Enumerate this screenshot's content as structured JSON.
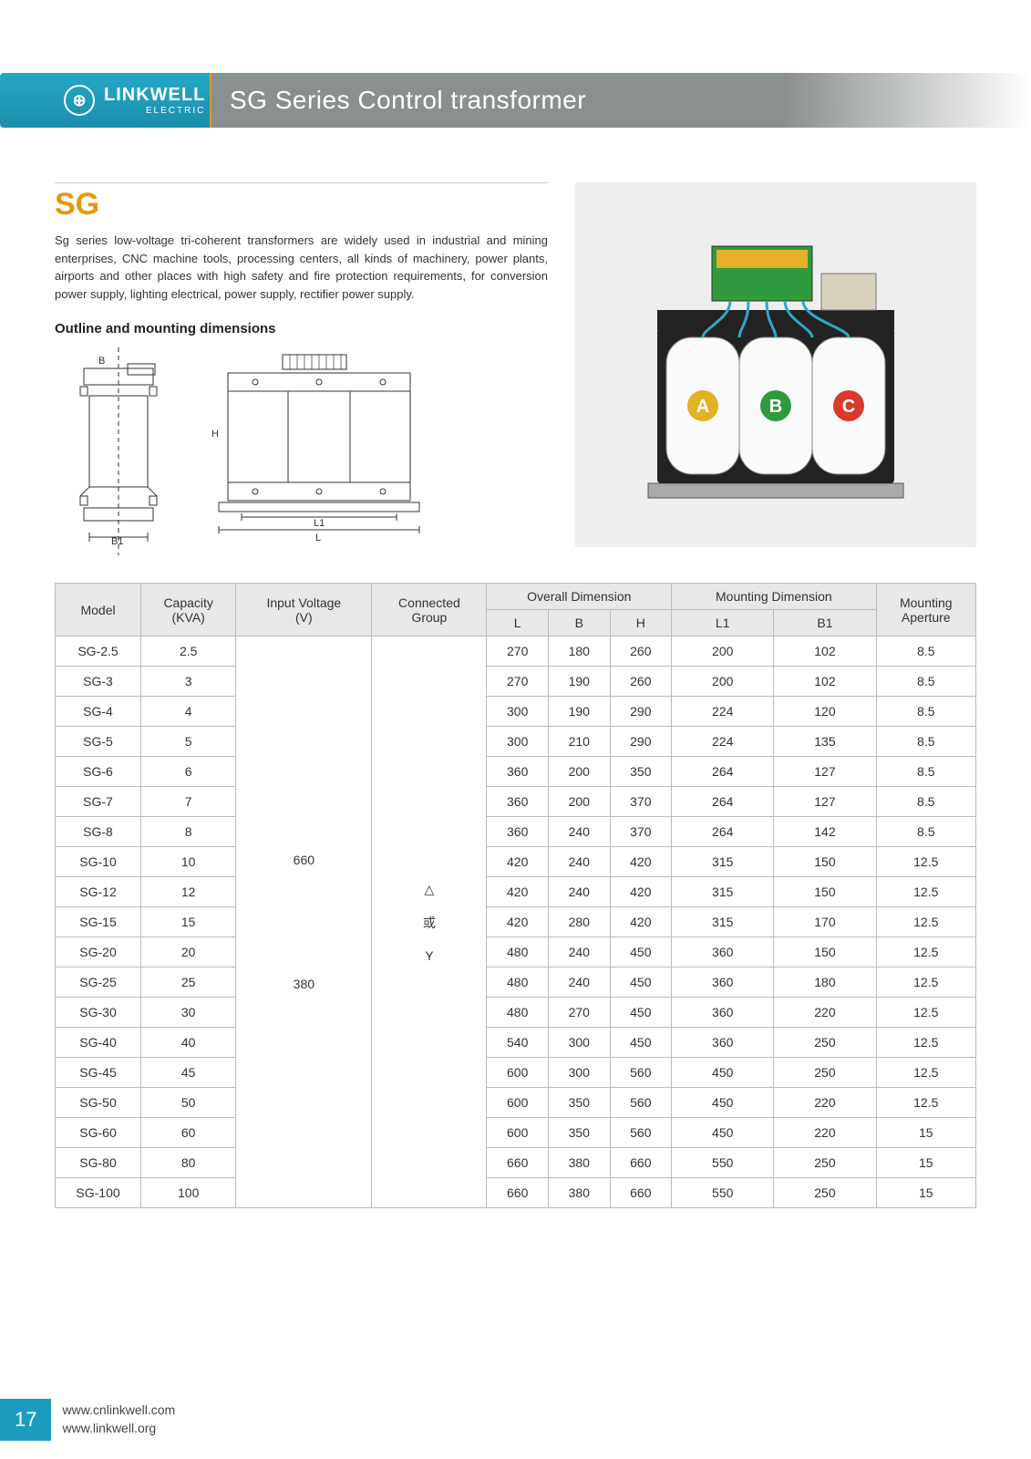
{
  "brand": {
    "name": "LINKWELL",
    "sub": "ELECTRIC"
  },
  "page_title": "SG Series Control transformer",
  "section_heading": "SG",
  "description": "Sg series low-voltage tri-coherent transformers are widely used in industrial and mining enterprises, CNC machine tools, processing centers, all kinds of machinery, power plants, airports and other places with high safety and fire protection requirements, for conversion power supply, lighting electrical, power supply, rectifier power supply.",
  "outline_heading": "Outline and mounting dimensions",
  "diagram_labels": {
    "B": "B",
    "B1": "B1",
    "H": "H",
    "L": "L",
    "L1": "L1"
  },
  "photo": {
    "phase_labels": [
      "A",
      "B",
      "C"
    ],
    "phase_colors": [
      "#e3b027",
      "#2f9a3e",
      "#d83a2b"
    ]
  },
  "table": {
    "headers": {
      "model": "Model",
      "capacity": "Capacity\n(KVA)",
      "input_voltage": "Input Voltage\n(V)",
      "connected_group": "Connected\nGroup",
      "overall": "Overall Dimension",
      "overall_sub": [
        "L",
        "B",
        "H"
      ],
      "mounting": "Mounting Dimension",
      "mounting_sub": [
        "L1",
        "B1"
      ],
      "aperture": "Mounting\nAperture"
    },
    "input_voltage_values": [
      "660",
      "380"
    ],
    "connected_group_values": [
      "△",
      "或",
      "Y"
    ],
    "rows": [
      {
        "model": "SG-2.5",
        "cap": "2.5",
        "L": "270",
        "B": "180",
        "H": "260",
        "L1": "200",
        "B1": "102",
        "ap": "8.5"
      },
      {
        "model": "SG-3",
        "cap": "3",
        "L": "270",
        "B": "190",
        "H": "260",
        "L1": "200",
        "B1": "102",
        "ap": "8.5"
      },
      {
        "model": "SG-4",
        "cap": "4",
        "L": "300",
        "B": "190",
        "H": "290",
        "L1": "224",
        "B1": "120",
        "ap": "8.5"
      },
      {
        "model": "SG-5",
        "cap": "5",
        "L": "300",
        "B": "210",
        "H": "290",
        "L1": "224",
        "B1": "135",
        "ap": "8.5"
      },
      {
        "model": "SG-6",
        "cap": "6",
        "L": "360",
        "B": "200",
        "H": "350",
        "L1": "264",
        "B1": "127",
        "ap": "8.5"
      },
      {
        "model": "SG-7",
        "cap": "7",
        "L": "360",
        "B": "200",
        "H": "370",
        "L1": "264",
        "B1": "127",
        "ap": "8.5"
      },
      {
        "model": "SG-8",
        "cap": "8",
        "L": "360",
        "B": "240",
        "H": "370",
        "L1": "264",
        "B1": "142",
        "ap": "8.5"
      },
      {
        "model": "SG-10",
        "cap": "10",
        "L": "420",
        "B": "240",
        "H": "420",
        "L1": "315",
        "B1": "150",
        "ap": "12.5"
      },
      {
        "model": "SG-12",
        "cap": "12",
        "L": "420",
        "B": "240",
        "H": "420",
        "L1": "315",
        "B1": "150",
        "ap": "12.5"
      },
      {
        "model": "SG-15",
        "cap": "15",
        "L": "420",
        "B": "280",
        "H": "420",
        "L1": "315",
        "B1": "170",
        "ap": "12.5"
      },
      {
        "model": "SG-20",
        "cap": "20",
        "L": "480",
        "B": "240",
        "H": "450",
        "L1": "360",
        "B1": "150",
        "ap": "12.5"
      },
      {
        "model": "SG-25",
        "cap": "25",
        "L": "480",
        "B": "240",
        "H": "450",
        "L1": "360",
        "B1": "180",
        "ap": "12.5"
      },
      {
        "model": "SG-30",
        "cap": "30",
        "L": "480",
        "B": "270",
        "H": "450",
        "L1": "360",
        "B1": "220",
        "ap": "12.5"
      },
      {
        "model": "SG-40",
        "cap": "40",
        "L": "540",
        "B": "300",
        "H": "450",
        "L1": "360",
        "B1": "250",
        "ap": "12.5"
      },
      {
        "model": "SG-45",
        "cap": "45",
        "L": "600",
        "B": "300",
        "H": "560",
        "L1": "450",
        "B1": "250",
        "ap": "12.5"
      },
      {
        "model": "SG-50",
        "cap": "50",
        "L": "600",
        "B": "350",
        "H": "560",
        "L1": "450",
        "B1": "220",
        "ap": "12.5"
      },
      {
        "model": "SG-60",
        "cap": "60",
        "L": "600",
        "B": "350",
        "H": "560",
        "L1": "450",
        "B1": "220",
        "ap": "15"
      },
      {
        "model": "SG-80",
        "cap": "80",
        "L": "660",
        "B": "380",
        "H": "660",
        "L1": "550",
        "B1": "250",
        "ap": "15"
      },
      {
        "model": "SG-100",
        "cap": "100",
        "L": "660",
        "B": "380",
        "H": "660",
        "L1": "550",
        "B1": "250",
        "ap": "15"
      }
    ]
  },
  "footer": {
    "page_number": "17",
    "url1": "www.cnlinkwell.com",
    "url2": "www.linkwell.org"
  },
  "colors": {
    "brand_teal": "#1b9cbe",
    "accent_orange": "#e8980b",
    "header_gray": "#8a8f8f",
    "table_header_bg": "#e8e8e8",
    "border": "#bbbbbb",
    "text": "#333333"
  }
}
